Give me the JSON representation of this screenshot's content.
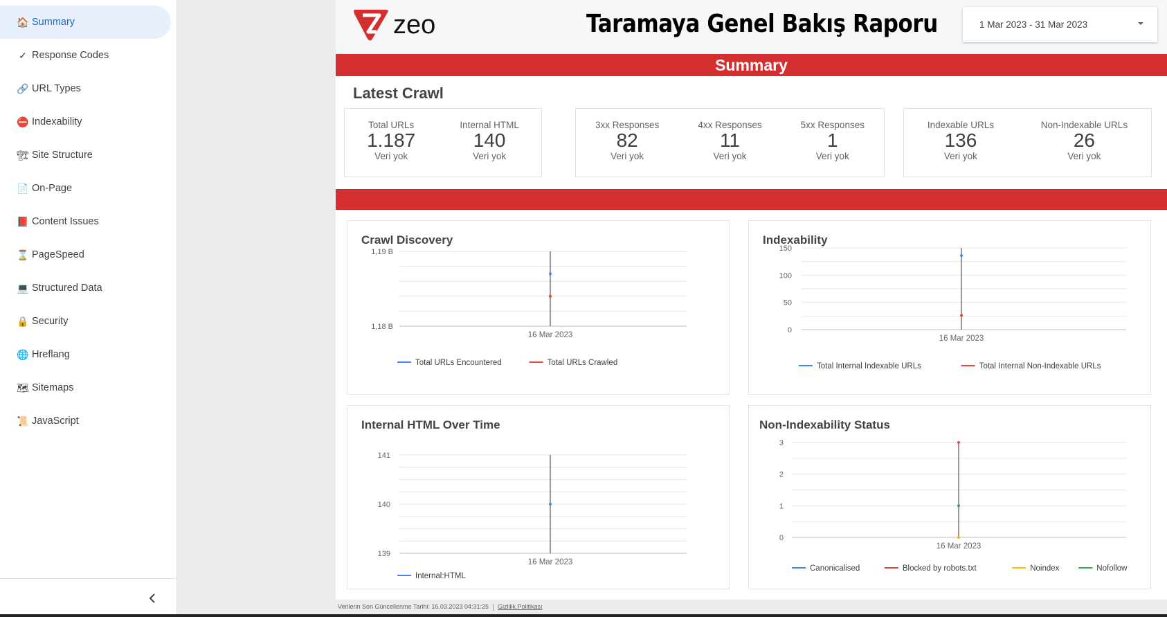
{
  "sidebar": {
    "items": [
      {
        "icon": "🏠",
        "label": "Summary",
        "active": true,
        "icon_name": "home-icon"
      },
      {
        "icon": "✓",
        "label": "Response Codes",
        "icon_name": "check-icon"
      },
      {
        "icon": "🔗",
        "label": "URL Types",
        "icon_name": "link-icon"
      },
      {
        "icon": "⛔",
        "label": "Indexability",
        "icon_name": "no-entry-icon"
      },
      {
        "icon": "🏗",
        "label": "Site Structure",
        "icon_name": "building-icon"
      },
      {
        "icon": "📄",
        "label": "On-Page",
        "icon_name": "page-icon"
      },
      {
        "icon": "📕",
        "label": "Content Issues",
        "icon_name": "book-icon"
      },
      {
        "icon": "⌛",
        "label": "PageSpeed",
        "icon_name": "hourglass-icon"
      },
      {
        "icon": "💻",
        "label": "Structured Data",
        "icon_name": "laptop-icon"
      },
      {
        "icon": "🔒",
        "label": "Security",
        "icon_name": "lock-icon"
      },
      {
        "icon": "🌐",
        "label": "Hreflang",
        "icon_name": "globe-icon"
      },
      {
        "icon": "🗺",
        "label": "Sitemaps",
        "icon_name": "map-icon"
      },
      {
        "icon": "📜",
        "label": "JavaScript",
        "icon_name": "scroll-icon"
      }
    ]
  },
  "header": {
    "logo_text": "zeo",
    "title": "Taramaya Genel Bakış Raporu",
    "date_range": "1 Mar 2023 - 31 Mar 2023"
  },
  "banner": "Summary",
  "latest_crawl": {
    "title": "Latest Crawl",
    "groups": [
      [
        {
          "label": "Total URLs",
          "value": "1.187",
          "sub": "Veri yok"
        },
        {
          "label": "Internal HTML",
          "value": "140",
          "sub": "Veri yok"
        }
      ],
      [
        {
          "label": "3xx Responses",
          "value": "82",
          "sub": "Veri yok"
        },
        {
          "label": "4xx Responses",
          "value": "11",
          "sub": "Veri yok"
        },
        {
          "label": "5xx Responses",
          "value": "1",
          "sub": "Veri yok"
        }
      ],
      [
        {
          "label": "Indexable URLs",
          "value": "136",
          "sub": "Veri yok"
        },
        {
          "label": "Non-Indexable URLs",
          "value": "26",
          "sub": "Veri yok"
        }
      ]
    ]
  },
  "charts": {
    "crawl_discovery": {
      "title": "Crawl Discovery"
    },
    "indexability": {
      "title": "Indexability"
    },
    "internal_html": {
      "title": "Internal HTML Over Time"
    },
    "non_indexability": {
      "title": "Non-Indexability Status"
    }
  },
  "chart_data": [
    {
      "id": "crawl_discovery",
      "type": "line",
      "title": "Crawl Discovery",
      "x": [
        "16 Mar 2023"
      ],
      "series": [
        {
          "name": "Total URLs Encountered",
          "color": "#4285f4",
          "values": [
            1187
          ]
        },
        {
          "name": "Total URLs Crawled",
          "color": "#ea4335",
          "values": [
            1184
          ]
        }
      ],
      "yticks": [
        "1,18 B",
        "1,19 B"
      ],
      "ylim": [
        1180,
        1190
      ],
      "legend": "bottom"
    },
    {
      "id": "indexability",
      "type": "line",
      "title": "Indexability",
      "x": [
        "16 Mar 2023"
      ],
      "series": [
        {
          "name": "Total Internal Indexable URLs",
          "color": "#4285f4",
          "values": [
            136
          ]
        },
        {
          "name": "Total Internal Non-Indexable URLs",
          "color": "#ea4335",
          "values": [
            26
          ]
        }
      ],
      "yticks": [
        "0",
        "50",
        "100",
        "150"
      ],
      "ylim": [
        0,
        150
      ],
      "legend": "bottom"
    },
    {
      "id": "internal_html",
      "type": "line",
      "title": "Internal HTML Over Time",
      "x": [
        "16 Mar 2023"
      ],
      "series": [
        {
          "name": "Internal:HTML",
          "color": "#4285f4",
          "values": [
            140
          ]
        }
      ],
      "yticks": [
        "139",
        "140",
        "141"
      ],
      "ylim": [
        139,
        141
      ],
      "legend": "bottom"
    },
    {
      "id": "non_indexability",
      "type": "line",
      "title": "Non-Indexability Status",
      "x": [
        "16 Mar 2023"
      ],
      "series": [
        {
          "name": "Canonicalised",
          "color": "#4285f4",
          "values": [
            0
          ]
        },
        {
          "name": "Blocked by robots.txt",
          "color": "#ea4335",
          "values": [
            3
          ]
        },
        {
          "name": "Noindex",
          "color": "#fbbc04",
          "values": [
            0
          ]
        },
        {
          "name": "Nofollow",
          "color": "#34a853",
          "values": [
            1
          ]
        }
      ],
      "yticks": [
        "0",
        "1",
        "2",
        "3"
      ],
      "ylim": [
        0,
        3
      ],
      "legend": "bottom"
    }
  ],
  "footer": {
    "updated": "Verilerin Son Güncellenme Tarihi: 16.03.2023 04:31:25",
    "privacy": "Gizlilik Politikası"
  }
}
